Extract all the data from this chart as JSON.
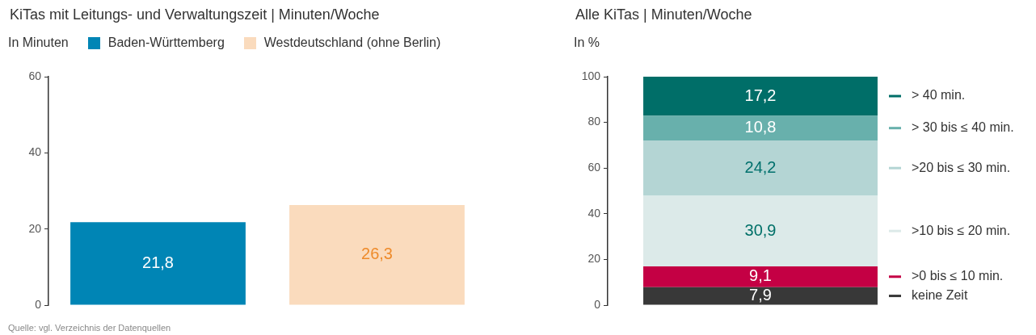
{
  "chart_data": [
    {
      "type": "bar",
      "title": "KiTas mit Leitungs- und Verwaltungszeit | Minuten/Woche",
      "ylabel": "In Minuten",
      "categories": [
        null,
        null
      ],
      "stacked": true,
      "series": [
        {
          "name": "Baden-Württemberg",
          "color": "#0085b5",
          "values": [
            21.8,
            null
          ],
          "value_labels": [
            "21,8",
            null
          ]
        },
        {
          "name": "Westdeutschland (ohne Berlin)",
          "color": "#fadbbd",
          "values": [
            null,
            26.3
          ],
          "value_labels": [
            null,
            "26,3"
          ]
        }
      ],
      "ylim": [
        0,
        60
      ],
      "yticks": [
        0,
        20,
        40,
        60
      ],
      "legend": "top left",
      "grid": false,
      "annotations": [
        "Quelle: vgl. Verzeichnis der Datenquellen"
      ]
    },
    {
      "type": "bar",
      "title": "Alle KiTas | Minuten/Woche",
      "ylabel": "In %",
      "categories": [
        null
      ],
      "stacked": true,
      "series": [
        {
          "name": "keine Zeit",
          "color": "#383838",
          "values": [
            7.9
          ],
          "value_labels": [
            "7,9"
          ]
        },
        {
          "name": ">0 bis ≤ 10 min.",
          "color": "#c40044",
          "values": [
            9.1
          ],
          "value_labels": [
            "9,1"
          ]
        },
        {
          "name": ">10 bis ≤ 20 min.",
          "color": "#dceae9",
          "values": [
            30.9
          ],
          "value_labels": [
            "30,9"
          ]
        },
        {
          "name": ">20 bis ≤ 30 min.",
          "color": "#b4d5d4",
          "values": [
            24.2
          ],
          "value_labels": [
            "24,2"
          ]
        },
        {
          "name": "> 30 bis ≤ 40 min.",
          "color": "#68b0ac",
          "values": [
            10.8
          ],
          "value_labels": [
            "10,8"
          ]
        },
        {
          "name": "> 40 min.",
          "color": "#006e68",
          "values": [
            17.2
          ],
          "value_labels": [
            "17,2"
          ]
        }
      ],
      "ylim": [
        0,
        100
      ],
      "yticks": [
        0,
        20,
        40,
        60,
        80,
        100
      ],
      "legend": "right",
      "grid": false
    }
  ]
}
